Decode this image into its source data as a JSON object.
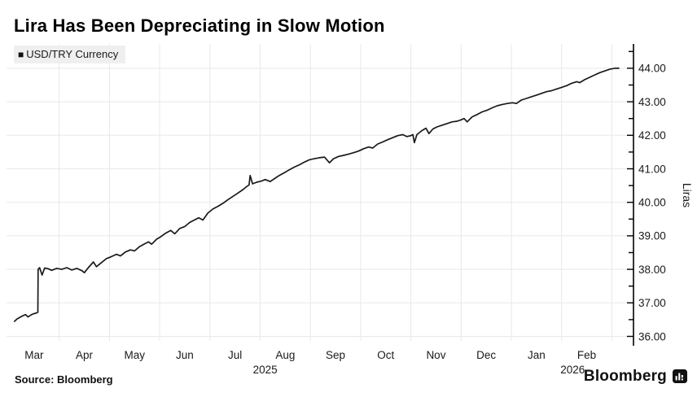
{
  "header": {
    "title": "Lira Has Been Depreciating in Slow Motion"
  },
  "legend": {
    "marker": "■",
    "label": "USD/TRY Currency"
  },
  "footer": {
    "source": "Source: Bloomberg",
    "brand": "Bloomberg"
  },
  "colors": {
    "line": "#1a1a1a",
    "grid": "#e8e8e8",
    "axis": "#000000",
    "tick_text": "#1a1a1a",
    "legend_bg": "#efefef",
    "background": "#ffffff"
  },
  "chart_data": {
    "type": "line",
    "title": "Lira Has Been Depreciating in Slow Motion",
    "ylabel": "Liras",
    "ylim": [
      36,
      44
    ],
    "y_tick_step": 1,
    "y_minor_step": 0.5,
    "y_tick_labels": [
      "36.00",
      "37.00",
      "38.00",
      "39.00",
      "40.00",
      "41.00",
      "42.00",
      "43.00",
      "44.00"
    ],
    "axis_side": "right",
    "grid": true,
    "legend_position": "top-left",
    "x_months": [
      "Mar",
      "Apr",
      "May",
      "Jun",
      "Jul",
      "Aug",
      "Sep",
      "Oct",
      "Nov",
      "Dec",
      "Jan",
      "Feb"
    ],
    "x_years": [
      "2025",
      "2026"
    ],
    "x_unit": "months since 2025-03-01",
    "series": [
      {
        "name": "USD/TRY Currency",
        "points": [
          [
            0.11,
            36.45
          ],
          [
            0.16,
            36.52
          ],
          [
            0.22,
            36.57
          ],
          [
            0.28,
            36.62
          ],
          [
            0.33,
            36.65
          ],
          [
            0.38,
            36.58
          ],
          [
            0.45,
            36.65
          ],
          [
            0.5,
            36.68
          ],
          [
            0.55,
            36.7
          ],
          [
            0.575,
            36.72
          ],
          [
            0.58,
            38.0
          ],
          [
            0.61,
            38.05
          ],
          [
            0.66,
            37.83
          ],
          [
            0.71,
            38.04
          ],
          [
            0.78,
            38.02
          ],
          [
            0.85,
            37.97
          ],
          [
            0.95,
            38.03
          ],
          [
            1.05,
            38.0
          ],
          [
            1.15,
            38.05
          ],
          [
            1.25,
            37.98
          ],
          [
            1.35,
            38.03
          ],
          [
            1.45,
            37.96
          ],
          [
            1.5,
            37.9
          ],
          [
            1.58,
            38.05
          ],
          [
            1.68,
            38.22
          ],
          [
            1.74,
            38.08
          ],
          [
            1.84,
            38.2
          ],
          [
            1.94,
            38.32
          ],
          [
            2.04,
            38.38
          ],
          [
            2.14,
            38.45
          ],
          [
            2.22,
            38.4
          ],
          [
            2.32,
            38.52
          ],
          [
            2.42,
            38.58
          ],
          [
            2.5,
            38.55
          ],
          [
            2.6,
            38.68
          ],
          [
            2.7,
            38.76
          ],
          [
            2.78,
            38.82
          ],
          [
            2.84,
            38.75
          ],
          [
            2.94,
            38.9
          ],
          [
            3.02,
            38.97
          ],
          [
            3.12,
            39.08
          ],
          [
            3.22,
            39.16
          ],
          [
            3.3,
            39.06
          ],
          [
            3.4,
            39.22
          ],
          [
            3.5,
            39.28
          ],
          [
            3.6,
            39.4
          ],
          [
            3.7,
            39.48
          ],
          [
            3.78,
            39.54
          ],
          [
            3.86,
            39.47
          ],
          [
            3.96,
            39.68
          ],
          [
            4.06,
            39.8
          ],
          [
            4.16,
            39.88
          ],
          [
            4.26,
            39.97
          ],
          [
            4.36,
            40.08
          ],
          [
            4.46,
            40.18
          ],
          [
            4.56,
            40.28
          ],
          [
            4.66,
            40.38
          ],
          [
            4.74,
            40.48
          ],
          [
            4.78,
            40.52
          ],
          [
            4.8,
            40.8
          ],
          [
            4.85,
            40.55
          ],
          [
            4.93,
            40.6
          ],
          [
            5.02,
            40.63
          ],
          [
            5.1,
            40.68
          ],
          [
            5.2,
            40.62
          ],
          [
            5.3,
            40.72
          ],
          [
            5.38,
            40.8
          ],
          [
            5.48,
            40.88
          ],
          [
            5.58,
            40.97
          ],
          [
            5.68,
            41.05
          ],
          [
            5.78,
            41.12
          ],
          [
            5.88,
            41.2
          ],
          [
            5.98,
            41.27
          ],
          [
            6.08,
            41.3
          ],
          [
            6.18,
            41.33
          ],
          [
            6.28,
            41.35
          ],
          [
            6.38,
            41.18
          ],
          [
            6.46,
            41.3
          ],
          [
            6.56,
            41.37
          ],
          [
            6.66,
            41.4
          ],
          [
            6.76,
            41.44
          ],
          [
            6.86,
            41.48
          ],
          [
            6.96,
            41.53
          ],
          [
            7.06,
            41.6
          ],
          [
            7.16,
            41.65
          ],
          [
            7.24,
            41.62
          ],
          [
            7.34,
            41.74
          ],
          [
            7.44,
            41.8
          ],
          [
            7.54,
            41.87
          ],
          [
            7.64,
            41.93
          ],
          [
            7.74,
            41.99
          ],
          [
            7.84,
            42.02
          ],
          [
            7.92,
            41.96
          ],
          [
            8.0,
            41.99
          ],
          [
            8.04,
            42.02
          ],
          [
            8.07,
            41.78
          ],
          [
            8.12,
            42.02
          ],
          [
            8.22,
            42.14
          ],
          [
            8.3,
            42.21
          ],
          [
            8.36,
            42.05
          ],
          [
            8.44,
            42.19
          ],
          [
            8.52,
            42.25
          ],
          [
            8.62,
            42.3
          ],
          [
            8.72,
            42.35
          ],
          [
            8.82,
            42.4
          ],
          [
            8.92,
            42.42
          ],
          [
            9.0,
            42.46
          ],
          [
            9.06,
            42.5
          ],
          [
            9.12,
            42.4
          ],
          [
            9.22,
            42.55
          ],
          [
            9.32,
            42.62
          ],
          [
            9.42,
            42.7
          ],
          [
            9.52,
            42.75
          ],
          [
            9.62,
            42.82
          ],
          [
            9.72,
            42.88
          ],
          [
            9.82,
            42.92
          ],
          [
            9.92,
            42.95
          ],
          [
            10.02,
            42.97
          ],
          [
            10.1,
            42.95
          ],
          [
            10.2,
            43.05
          ],
          [
            10.3,
            43.1
          ],
          [
            10.4,
            43.15
          ],
          [
            10.5,
            43.2
          ],
          [
            10.6,
            43.25
          ],
          [
            10.7,
            43.3
          ],
          [
            10.8,
            43.33
          ],
          [
            10.9,
            43.38
          ],
          [
            11.0,
            43.43
          ],
          [
            11.1,
            43.48
          ],
          [
            11.2,
            43.55
          ],
          [
            11.3,
            43.6
          ],
          [
            11.36,
            43.57
          ],
          [
            11.46,
            43.66
          ],
          [
            11.56,
            43.73
          ],
          [
            11.66,
            43.8
          ],
          [
            11.76,
            43.87
          ],
          [
            11.86,
            43.92
          ],
          [
            11.96,
            43.97
          ],
          [
            12.06,
            44.0
          ],
          [
            12.14,
            44.0
          ]
        ]
      }
    ]
  }
}
